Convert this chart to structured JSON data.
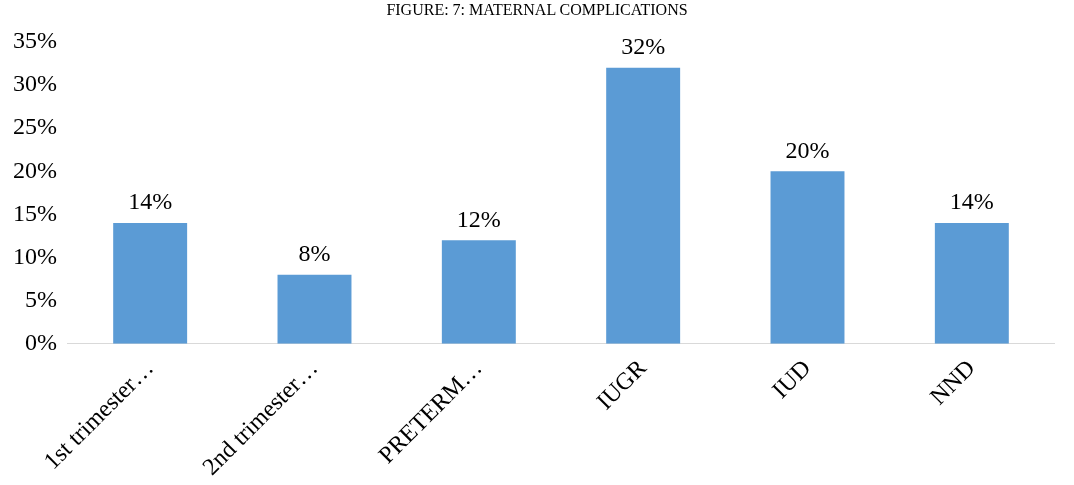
{
  "chart_data": {
    "type": "bar",
    "title": "FIGURE: 7: MATERNAL COMPLICATIONS",
    "categories": [
      "1st trimester…",
      "2nd trimester…",
      "PRETERM…",
      "IUGR",
      "IUD",
      "NND"
    ],
    "values": [
      14,
      8,
      12,
      32,
      20,
      14
    ],
    "color": "#5b9bd5",
    "value_labels": [
      "14%",
      "8%",
      "12%",
      "32%",
      "20%",
      "14%"
    ],
    "ylim": [
      0,
      35
    ],
    "yticks": [
      {
        "value": 0,
        "label": "0%"
      },
      {
        "value": 5,
        "label": "5%"
      },
      {
        "value": 10,
        "label": "10%"
      },
      {
        "value": 15,
        "label": "15%"
      },
      {
        "value": 20,
        "label": "20%"
      },
      {
        "value": 25,
        "label": "25%"
      },
      {
        "value": 30,
        "label": "30%"
      },
      {
        "value": 35,
        "label": "35%"
      }
    ],
    "grid": false,
    "legend": false
  }
}
